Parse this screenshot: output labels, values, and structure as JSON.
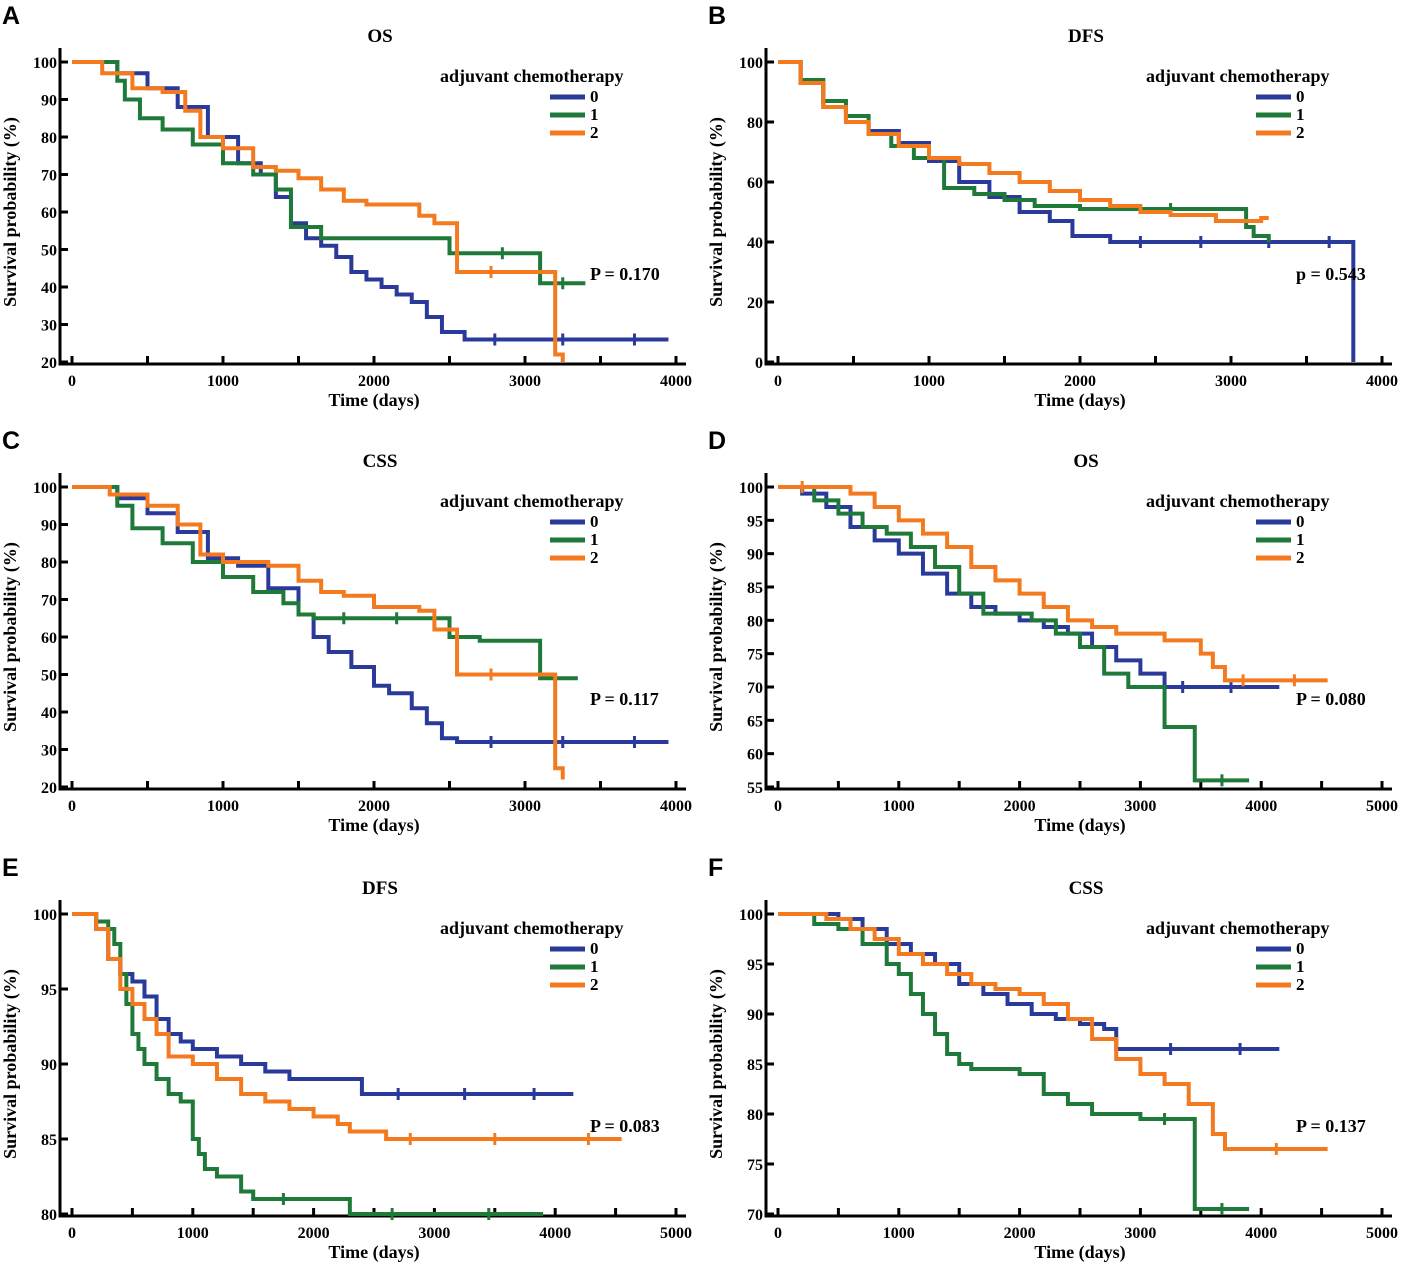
{
  "colors": {
    "s0": "#2a3a9a",
    "s1": "#1f7a3a",
    "s2": "#f47a20"
  },
  "chart_data": [
    {
      "letter": "A",
      "type": "line",
      "title": "OS",
      "xlabel": "Time (days)",
      "ylabel": "Survival probability (%)",
      "xlim": [
        0,
        4000
      ],
      "ylim": [
        20,
        100
      ],
      "xticks": [
        0,
        1000,
        2000,
        3000,
        4000
      ],
      "yticks": [
        20,
        30,
        40,
        50,
        60,
        70,
        80,
        90,
        100
      ],
      "legend_title": "adjuvant chemotherapy",
      "pvalue": "P = 0.170",
      "series": [
        {
          "name": "0",
          "x": [
            0,
            300,
            500,
            700,
            900,
            1100,
            1250,
            1350,
            1450,
            1550,
            1650,
            1750,
            1850,
            1950,
            2050,
            2150,
            2250,
            2350,
            2450,
            2600,
            3000,
            3500,
            3950
          ],
          "y": [
            100,
            97,
            93,
            88,
            80,
            73,
            70,
            64,
            57,
            53,
            51,
            48,
            44,
            42,
            40,
            38,
            36,
            32,
            28,
            26,
            26,
            26,
            26
          ]
        },
        {
          "name": "1",
          "x": [
            0,
            300,
            350,
            450,
            600,
            800,
            1000,
            1200,
            1350,
            1450,
            1650,
            1800,
            2000,
            2200,
            2500,
            2700,
            3000,
            3100,
            3400
          ],
          "y": [
            100,
            95,
            90,
            85,
            82,
            78,
            73,
            70,
            66,
            56,
            53,
            53,
            53,
            53,
            49,
            49,
            49,
            41,
            41
          ]
        },
        {
          "name": "2",
          "x": [
            0,
            200,
            400,
            600,
            750,
            850,
            1000,
            1200,
            1350,
            1500,
            1650,
            1800,
            1950,
            2100,
            2300,
            2400,
            2550,
            3000,
            3200,
            3250
          ],
          "y": [
            100,
            97,
            93,
            92,
            87,
            80,
            77,
            72,
            71,
            69,
            66,
            63,
            62,
            62,
            59,
            57,
            44,
            44,
            22,
            20
          ]
        }
      ]
    },
    {
      "letter": "B",
      "type": "line",
      "title": "DFS",
      "xlabel": "Time (days)",
      "ylabel": "Survival probability (%)",
      "xlim": [
        0,
        4000
      ],
      "ylim": [
        0,
        100
      ],
      "xticks": [
        0,
        1000,
        2000,
        3000,
        4000
      ],
      "yticks": [
        0,
        20,
        40,
        60,
        80,
        100
      ],
      "legend_title": "adjuvant chemotherapy",
      "pvalue": "p = 0.543",
      "series": [
        {
          "name": "0",
          "x": [
            0,
            150,
            300,
            450,
            600,
            800,
            1000,
            1200,
            1400,
            1600,
            1800,
            1950,
            2200,
            2600,
            3000,
            3500,
            3800,
            3810
          ],
          "y": [
            100,
            93,
            85,
            80,
            77,
            73,
            67,
            60,
            55,
            50,
            47,
            42,
            40,
            40,
            40,
            40,
            40,
            0
          ]
        },
        {
          "name": "1",
          "x": [
            0,
            150,
            300,
            450,
            600,
            750,
            900,
            1100,
            1300,
            1500,
            1700,
            2000,
            2200,
            2400,
            2800,
            3100,
            3150,
            3250
          ],
          "y": [
            100,
            94,
            87,
            82,
            76,
            72,
            68,
            58,
            56,
            54,
            52,
            51,
            51,
            51,
            51,
            45,
            42,
            40
          ]
        },
        {
          "name": "2",
          "x": [
            0,
            150,
            300,
            450,
            600,
            800,
            1000,
            1200,
            1400,
            1600,
            1800,
            2000,
            2200,
            2400,
            2600,
            2900,
            3200,
            3250
          ],
          "y": [
            100,
            93,
            85,
            80,
            76,
            72,
            68,
            66,
            63,
            60,
            57,
            54,
            52,
            50,
            49,
            47,
            48,
            48
          ]
        }
      ]
    },
    {
      "letter": "C",
      "type": "line",
      "title": "CSS",
      "xlabel": "Time (days)",
      "ylabel": "Survival probability (%)",
      "xlim": [
        0,
        4000
      ],
      "ylim": [
        20,
        100
      ],
      "xticks": [
        0,
        1000,
        2000,
        3000,
        4000
      ],
      "yticks": [
        20,
        30,
        40,
        50,
        60,
        70,
        80,
        90,
        100
      ],
      "legend_title": "adjuvant chemotherapy",
      "pvalue": "P = 0.117",
      "series": [
        {
          "name": "0",
          "x": [
            0,
            300,
            500,
            700,
            900,
            1100,
            1300,
            1500,
            1600,
            1700,
            1850,
            2000,
            2100,
            2250,
            2350,
            2450,
            2550,
            3000,
            3500,
            3950
          ],
          "y": [
            100,
            97,
            93,
            88,
            81,
            79,
            73,
            66,
            60,
            56,
            52,
            47,
            45,
            41,
            37,
            33,
            32,
            32,
            32,
            32
          ]
        },
        {
          "name": "1",
          "x": [
            0,
            300,
            400,
            600,
            800,
            1000,
            1200,
            1400,
            1500,
            1600,
            2000,
            2300,
            2500,
            2700,
            3100,
            3200,
            3350
          ],
          "y": [
            100,
            95,
            89,
            85,
            80,
            76,
            72,
            69,
            66,
            65,
            65,
            65,
            60,
            59,
            49,
            49,
            49
          ]
        },
        {
          "name": "2",
          "x": [
            0,
            250,
            500,
            700,
            850,
            1000,
            1300,
            1500,
            1650,
            1800,
            2000,
            2300,
            2400,
            2550,
            3000,
            3200,
            3250
          ],
          "y": [
            100,
            98,
            95,
            90,
            82,
            80,
            79,
            75,
            72,
            71,
            68,
            67,
            62,
            50,
            50,
            25,
            22
          ]
        }
      ]
    },
    {
      "letter": "D",
      "type": "line",
      "title": "OS",
      "xlabel": "Time (days)",
      "ylabel": "Survival probability (%)",
      "xlim": [
        0,
        5000
      ],
      "ylim": [
        55,
        100
      ],
      "xticks": [
        0,
        1000,
        2000,
        3000,
        4000,
        5000
      ],
      "yticks": [
        55,
        60,
        65,
        70,
        75,
        80,
        85,
        90,
        95,
        100
      ],
      "legend_title": "adjuvant chemotherapy",
      "pvalue": "P = 0.080",
      "series": [
        {
          "name": "0",
          "x": [
            0,
            200,
            400,
            600,
            800,
            1000,
            1200,
            1400,
            1600,
            1800,
            2000,
            2200,
            2400,
            2600,
            2800,
            3000,
            3200,
            3500,
            4000,
            4150
          ],
          "y": [
            100,
            99,
            97,
            94,
            92,
            90,
            87,
            84,
            82,
            81,
            80,
            79,
            78,
            76,
            74,
            72,
            70,
            70,
            70,
            70
          ]
        },
        {
          "name": "1",
          "x": [
            0,
            300,
            500,
            700,
            900,
            1100,
            1300,
            1500,
            1700,
            1900,
            2100,
            2300,
            2500,
            2700,
            2900,
            3150,
            3200,
            3400,
            3450,
            3900
          ],
          "y": [
            100,
            98,
            96,
            94,
            93,
            91,
            88,
            84,
            81,
            81,
            80,
            78,
            76,
            72,
            70,
            70,
            64,
            64,
            56,
            56
          ]
        },
        {
          "name": "2",
          "x": [
            0,
            400,
            600,
            800,
            1000,
            1200,
            1400,
            1600,
            1800,
            2000,
            2200,
            2400,
            2600,
            2800,
            3000,
            3200,
            3400,
            3500,
            3600,
            3700,
            4000,
            4550
          ],
          "y": [
            100,
            100,
            99,
            97,
            95,
            93,
            91,
            88,
            86,
            84,
            82,
            80,
            79,
            78,
            78,
            77,
            77,
            75,
            73,
            71,
            71,
            71
          ]
        }
      ]
    },
    {
      "letter": "E",
      "type": "line",
      "title": "DFS",
      "xlabel": "Time (days)",
      "ylabel": "Survival probability (%)",
      "xlim": [
        0,
        5000
      ],
      "ylim": [
        80,
        100
      ],
      "xticks": [
        0,
        1000,
        2000,
        3000,
        4000,
        5000
      ],
      "yticks": [
        80,
        85,
        90,
        95,
        100
      ],
      "legend_title": "adjuvant chemotherapy",
      "pvalue": "P = 0.083",
      "series": [
        {
          "name": "0",
          "x": [
            0,
            200,
            300,
            400,
            500,
            600,
            700,
            800,
            900,
            1000,
            1200,
            1400,
            1600,
            1800,
            2000,
            2400,
            3000,
            3500,
            4150
          ],
          "y": [
            100,
            99,
            97,
            96,
            95.5,
            94.5,
            93,
            92,
            91.5,
            91,
            90.5,
            90,
            89.5,
            89,
            89,
            88,
            88,
            88,
            88
          ]
        },
        {
          "name": "1",
          "x": [
            0,
            200,
            300,
            350,
            400,
            450,
            500,
            550,
            600,
            700,
            800,
            900,
            1000,
            1050,
            1100,
            1200,
            1400,
            1500,
            2000,
            2300,
            3000,
            3900
          ],
          "y": [
            100,
            99.5,
            99,
            98,
            96,
            94,
            92,
            91,
            90,
            89,
            88,
            87.5,
            85,
            84,
            83,
            82.5,
            81.5,
            81,
            81,
            80,
            80,
            80
          ]
        },
        {
          "name": "2",
          "x": [
            0,
            200,
            300,
            400,
            500,
            600,
            700,
            800,
            1000,
            1200,
            1400,
            1600,
            1800,
            2000,
            2200,
            2300,
            2600,
            3000,
            4000,
            4550
          ],
          "y": [
            100,
            99,
            97,
            95,
            94,
            93,
            92,
            90.5,
            90,
            89,
            88,
            87.5,
            87,
            86.5,
            86,
            85.5,
            85,
            85,
            85,
            85
          ]
        }
      ]
    },
    {
      "letter": "F",
      "type": "line",
      "title": "CSS",
      "xlabel": "Time (days)",
      "ylabel": "Survival probability (%)",
      "xlim": [
        0,
        5000
      ],
      "ylim": [
        70,
        100
      ],
      "xticks": [
        0,
        1000,
        2000,
        3000,
        4000,
        5000
      ],
      "yticks": [
        70,
        75,
        80,
        85,
        90,
        95,
        100
      ],
      "legend_title": "adjuvant chemotherapy",
      "pvalue": "P = 0.137",
      "series": [
        {
          "name": "0",
          "x": [
            0,
            500,
            700,
            900,
            1100,
            1300,
            1500,
            1700,
            1900,
            2100,
            2300,
            2500,
            2700,
            2800,
            3000,
            3500,
            4150
          ],
          "y": [
            100,
            99.5,
            98.5,
            97,
            96,
            95,
            93,
            92,
            91,
            90,
            89.5,
            89,
            88.5,
            86.5,
            86.5,
            86.5,
            86.5
          ]
        },
        {
          "name": "1",
          "x": [
            0,
            300,
            500,
            700,
            900,
            1000,
            1100,
            1200,
            1300,
            1400,
            1500,
            1600,
            1800,
            2000,
            2200,
            2400,
            2600,
            3000,
            3400,
            3450,
            3900
          ],
          "y": [
            100,
            99,
            98.5,
            97,
            95,
            94,
            92,
            90,
            88,
            86,
            85,
            84.5,
            84.5,
            84,
            82,
            81,
            80,
            79.5,
            79.5,
            70.5,
            70.5
          ]
        },
        {
          "name": "2",
          "x": [
            0,
            400,
            600,
            800,
            1000,
            1200,
            1400,
            1600,
            1800,
            2000,
            2200,
            2400,
            2600,
            2800,
            3000,
            3200,
            3400,
            3600,
            3700,
            4550
          ],
          "y": [
            100,
            99.5,
            98.5,
            97.5,
            96,
            95,
            94,
            93,
            92.5,
            92,
            91,
            89.5,
            87.5,
            85.5,
            84,
            83,
            81,
            78,
            76.5,
            76.5
          ]
        }
      ]
    }
  ]
}
